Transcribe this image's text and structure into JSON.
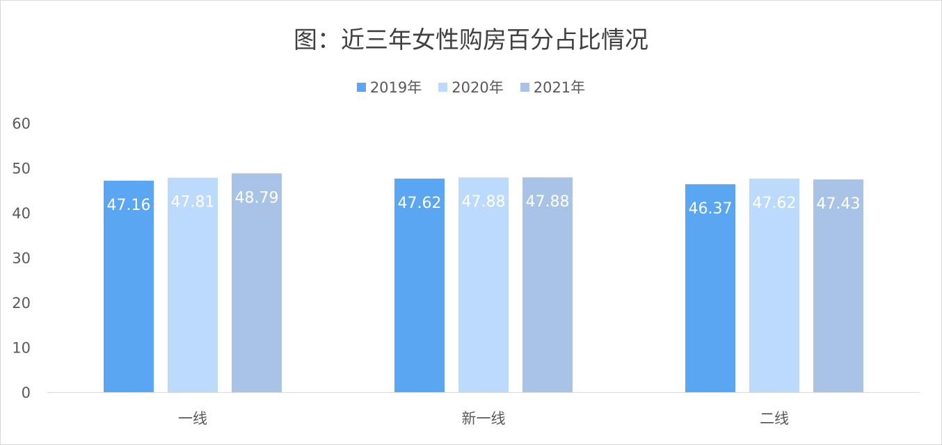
{
  "chart_data": {
    "type": "bar",
    "title": "图：近三年女性购房百分占比情况",
    "categories": [
      "一线",
      "新一线",
      "二线"
    ],
    "series": [
      {
        "name": "2019年",
        "color": "#5aa6f3",
        "values": [
          47.16,
          47.62,
          46.37
        ]
      },
      {
        "name": "2020年",
        "color": "#bcdafb",
        "values": [
          47.81,
          47.88,
          47.62
        ]
      },
      {
        "name": "2021年",
        "color": "#a9c3e6",
        "values": [
          48.79,
          47.88,
          47.43
        ]
      }
    ],
    "data_labels": [
      [
        "47.16",
        "47.62",
        "46.37"
      ],
      [
        "47.81",
        "47.88",
        "47.62"
      ],
      [
        "48.79",
        "47.88",
        "47.43"
      ]
    ],
    "xlabel": "",
    "ylabel": "",
    "ylim": [
      0,
      60
    ],
    "yticks": [
      "0",
      "10",
      "20",
      "30",
      "40",
      "50",
      "60"
    ],
    "grid": false,
    "legend_position": "top-center"
  }
}
